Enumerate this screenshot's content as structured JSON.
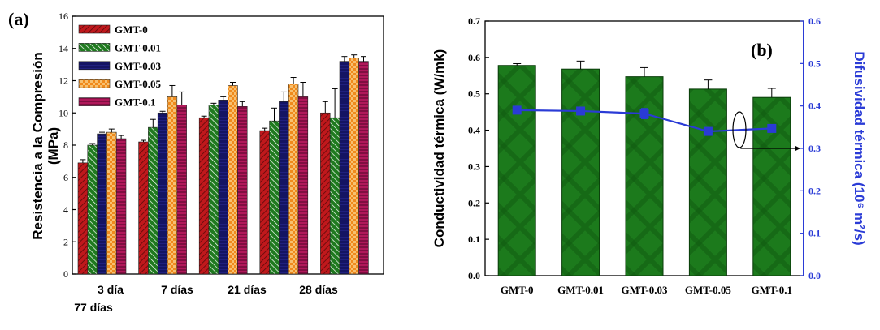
{
  "chart_data": [
    {
      "type": "bar",
      "panel_label": "(a)",
      "ylabel_line1": "Resistencia a la Compresión",
      "ylabel_line2": "(MPa)",
      "ylim": [
        0,
        16
      ],
      "yticks": [
        "0",
        "2",
        "4",
        "6",
        "8",
        "10",
        "12",
        "14",
        "16"
      ],
      "categories": [
        "3 día",
        "7 días",
        "21 días",
        "28 días",
        "77 días"
      ],
      "grid": false,
      "legend_position": "top-left",
      "series": [
        {
          "name": "GMT-0",
          "color": "#c0181c",
          "values": [
            6.9,
            8.2,
            9.7,
            8.9,
            10.0
          ],
          "errors": [
            0.2,
            0.1,
            0.1,
            0.15,
            0.7
          ]
        },
        {
          "name": "GMT-0.01",
          "color": "#1f7a1f",
          "values": [
            8.0,
            9.1,
            10.5,
            9.5,
            9.7
          ],
          "errors": [
            0.1,
            0.5,
            0.1,
            0.8,
            1.8
          ]
        },
        {
          "name": "GMT-0.03",
          "color": "#141463",
          "values": [
            8.7,
            10.0,
            10.8,
            10.7,
            13.2
          ],
          "errors": [
            0.1,
            0.1,
            0.2,
            0.6,
            0.3
          ]
        },
        {
          "name": "GMT-0.05",
          "color": "#f08a1c",
          "values": [
            8.8,
            11.0,
            11.7,
            11.8,
            13.4
          ],
          "errors": [
            0.2,
            0.7,
            0.2,
            0.4,
            0.2
          ]
        },
        {
          "name": "GMT-0.1",
          "color": "#b0185a",
          "values": [
            8.4,
            10.5,
            10.4,
            11.0,
            13.2
          ],
          "errors": [
            0.2,
            0.8,
            0.3,
            0.9,
            0.3
          ]
        }
      ]
    },
    {
      "type": "bar+line",
      "panel_label": "(b)",
      "ylabel_left": "Conductividad térmica (W/mk)",
      "ylabel_right": "Difusividad térmica (10⁶ m²/s)",
      "ylim_left": [
        0,
        0.7
      ],
      "ylim_right": [
        0,
        0.6
      ],
      "yticks_left": [
        "0.0",
        "0.1",
        "0.2",
        "0.3",
        "0.4",
        "0.5",
        "0.6",
        "0.7"
      ],
      "yticks_right": [
        "0.0",
        "0.1",
        "0.2",
        "0.3",
        "0.4",
        "0.5",
        "0.6"
      ],
      "categories": [
        "GMT-0",
        "GMT-0.01",
        "GMT-0.03",
        "GMT-0.05",
        "GMT-0.1"
      ],
      "bar_color": "#1c7a1c",
      "line_color": "#2a3bd6",
      "bars": {
        "values": [
          0.578,
          0.568,
          0.547,
          0.513,
          0.49
        ],
        "errors": [
          0.005,
          0.022,
          0.025,
          0.025,
          0.025
        ]
      },
      "line": {
        "values": [
          0.39,
          0.388,
          0.382,
          0.34,
          0.347
        ],
        "errors": [
          0.008,
          0.008,
          0.012,
          0.008,
          0.008
        ]
      }
    }
  ]
}
